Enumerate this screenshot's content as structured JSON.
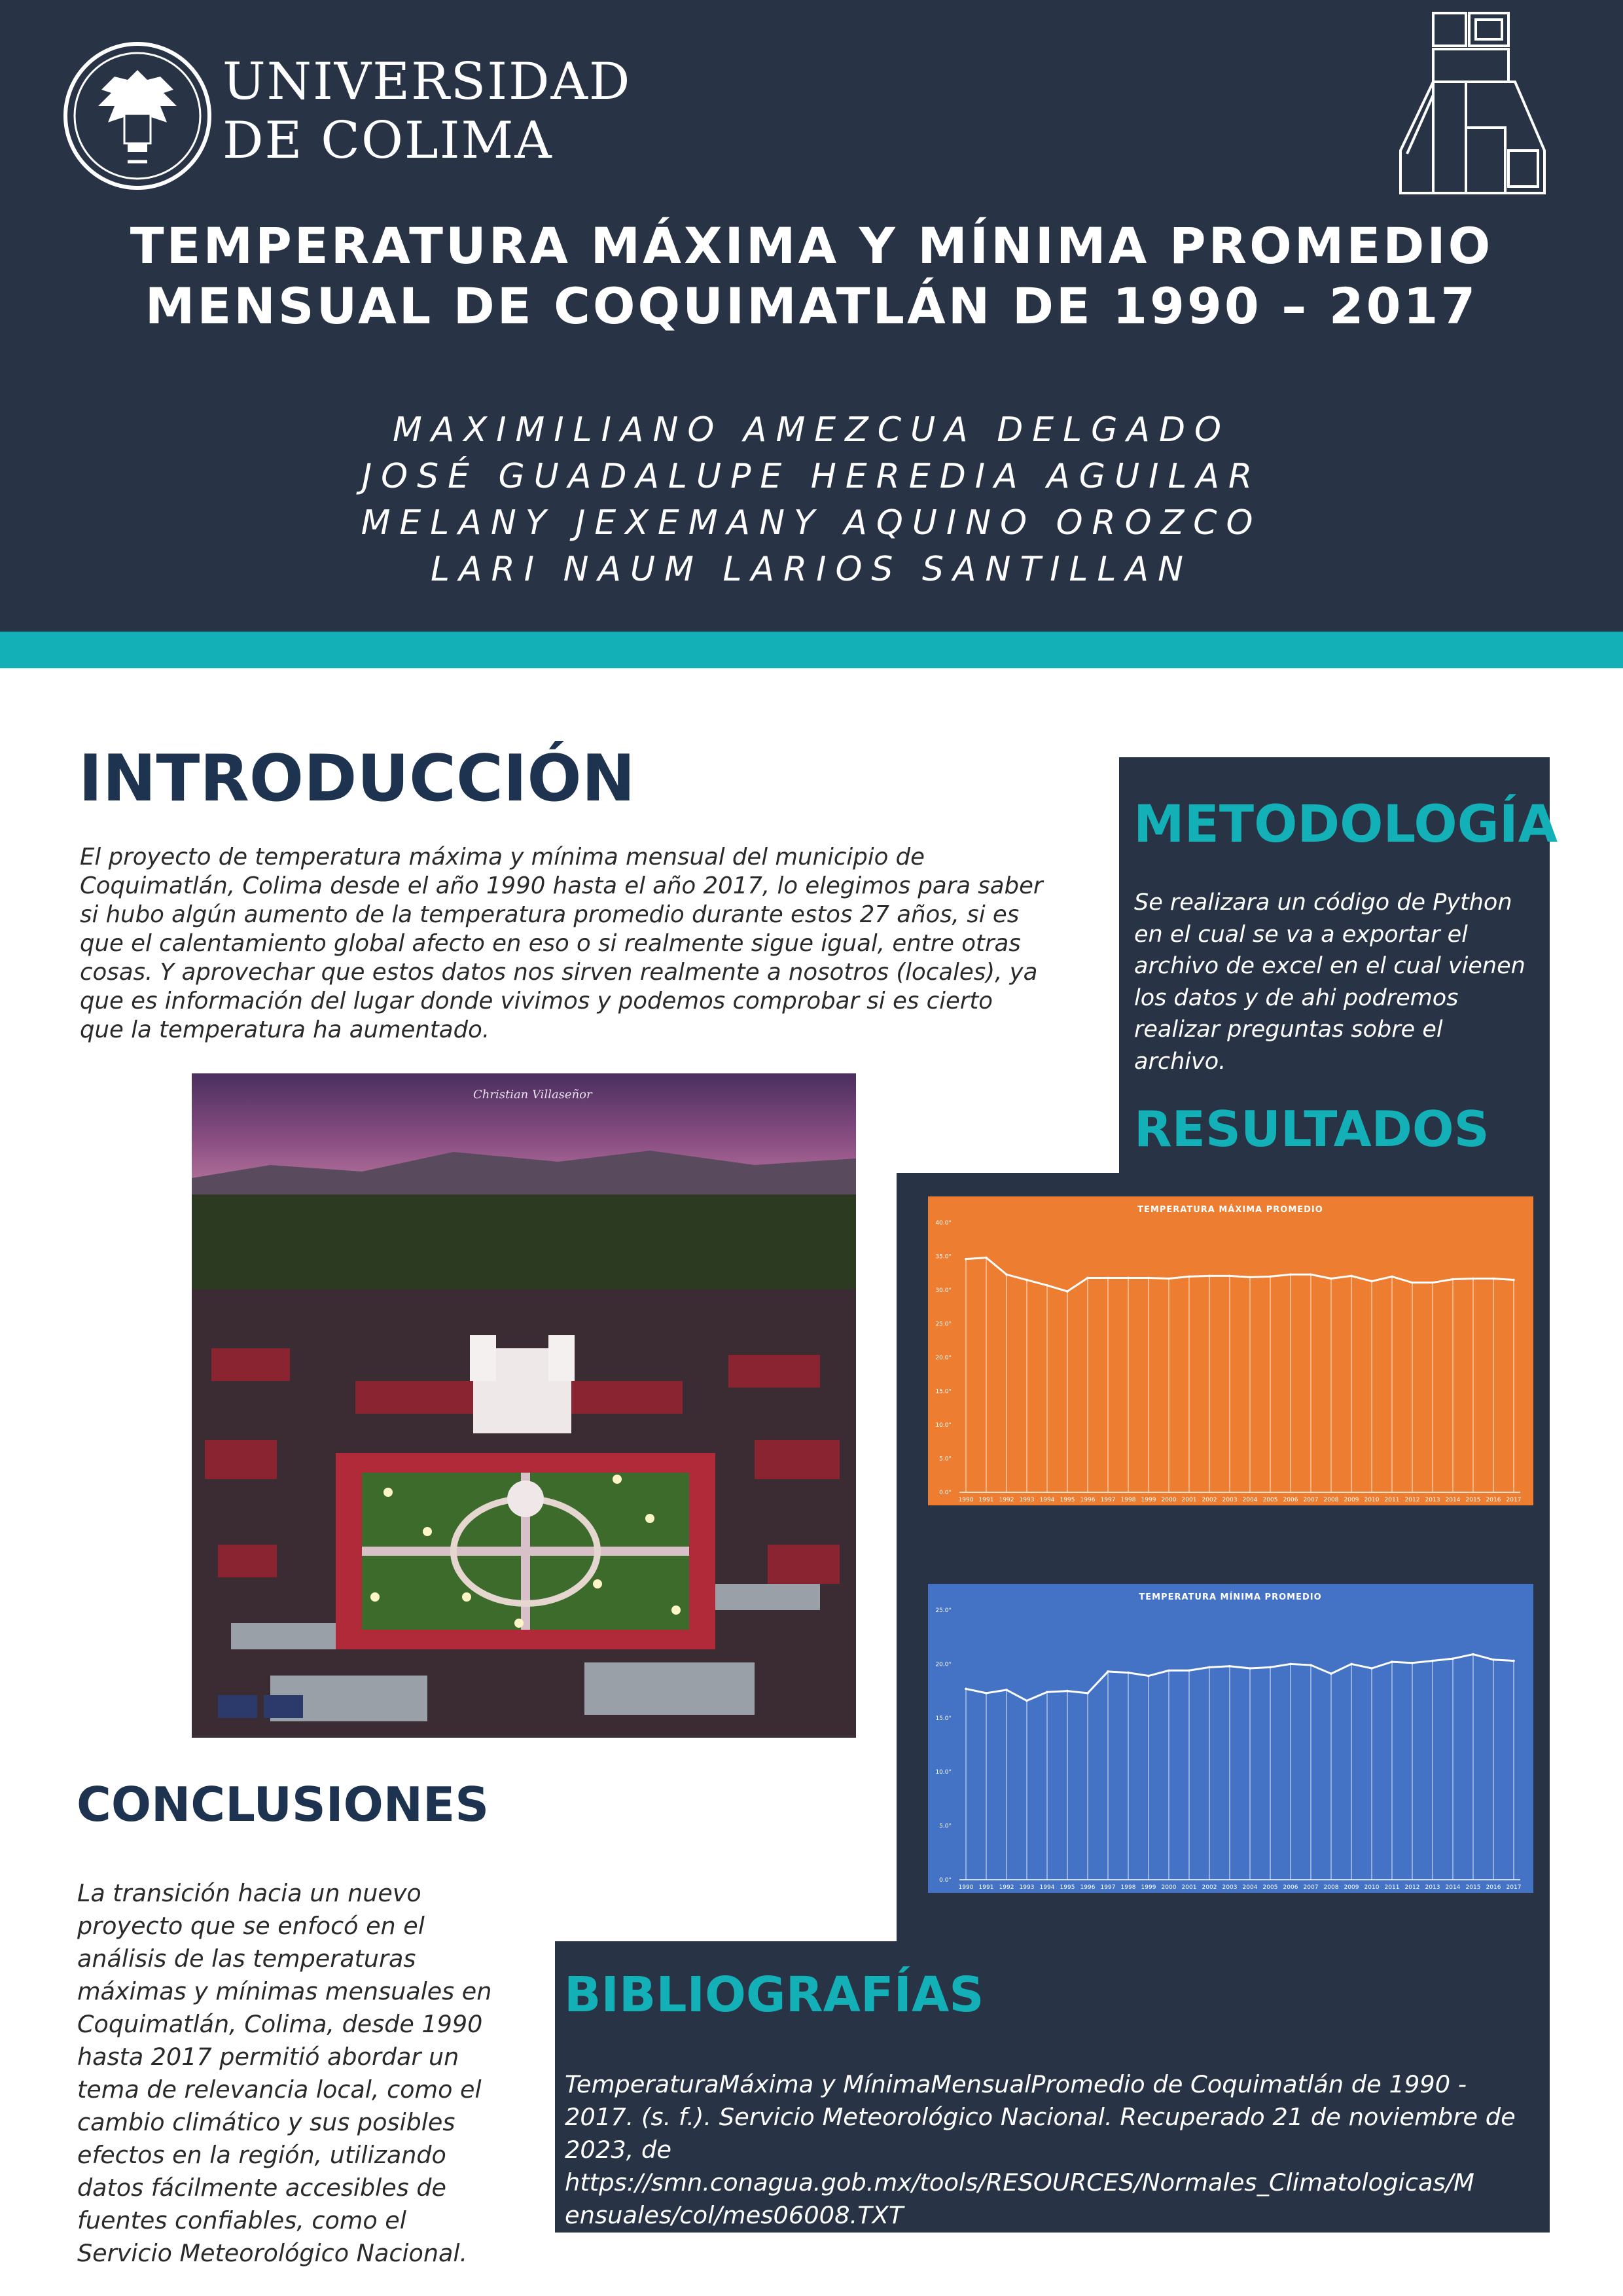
{
  "header": {
    "university_line1": "UNIVERSIDAD",
    "university_line2": "DE COLIMA",
    "title_line1": "TEMPERATURA MÁXIMA Y MÍNIMA PROMEDIO",
    "title_line2": "MENSUAL DE COQUIMATLÁN DE 1990 – 2017",
    "authors": [
      "MAXIMILIANO AMEZCUA DELGADO",
      "JOSÉ GUADALUPE HEREDIA AGUILAR",
      "MELANY JEXEMANY AQUINO OROZCO",
      "LARI NAUM LARIOS SANTILLAN"
    ]
  },
  "colors": {
    "navy": "#283446",
    "teal": "#14b0b8",
    "heading_dark": "#1d3350",
    "chart_orange": "#ed7d31",
    "chart_blue": "#4472c4"
  },
  "introduction": {
    "heading": "INTRODUCCIÓN",
    "lines": [
      "El proyecto de temperatura máxima y mínima mensual del municipio de",
      "Coquimatlán, Colima desde el año 1990 hasta el año 2017, lo elegimos para saber",
      "si hubo algún aumento de la temperatura promedio durante estos 27 años, si es",
      "que el calentamiento global afecto en eso o si realmente sigue igual, entre otras",
      "cosas. Y aprovechar que estos datos nos sirven realmente a nosotros (locales), ya",
      "que es información del lugar donde vivimos y podemos comprobar si es cierto",
      "que la temperatura ha aumentado."
    ]
  },
  "photo": {
    "signature": "Christian Villaseñor"
  },
  "methodology": {
    "heading": "METODOLOGÍA",
    "lines": [
      "Se realizara un código de Python",
      "en el cual se va a exportar el",
      "archivo de excel en el cual vienen",
      "los datos y de ahi podremos",
      "realizar preguntas sobre el",
      "archivo."
    ]
  },
  "results": {
    "heading": "RESULTADOS"
  },
  "conclusions": {
    "heading": "CONCLUSIONES",
    "lines": [
      "La transición hacia un nuevo",
      "proyecto que se enfocó en el",
      "análisis de las temperaturas",
      "máximas y mínimas mensuales en",
      "Coquimatlán, Colima, desde 1990",
      "hasta 2017 permitió abordar un",
      "tema de relevancia local, como el",
      "cambio climático y sus posibles",
      "efectos en la región, utilizando",
      "datos fácilmente accesibles de",
      "fuentes confiables, como el",
      "Servicio Meteorológico Nacional."
    ]
  },
  "bibliography": {
    "heading": "BIBLIOGRAFÍAS",
    "lines": [
      "TemperaturaMáxima y MínimaMensualPromedio de Coquimatlán de 1990 -",
      "2017. (s. f.). Servicio Meteorológico Nacional. Recuperado 21 de noviembre de",
      "2023, de"
    ],
    "link_lines": [
      "https://smn.conagua.gob.mx/tools/RESOURCES/Normales_Climatologicas/M",
      "ensuales/col/mes06008.TXT"
    ]
  },
  "chart_data": [
    {
      "type": "area",
      "title": "TEMPERATURA MÁXIMA PROMEDIO",
      "color": "#ed7d31",
      "categories": [
        "1990",
        "1991",
        "1992",
        "1993",
        "1994",
        "1995",
        "1996",
        "1997",
        "1998",
        "1999",
        "2000",
        "2001",
        "2002",
        "2003",
        "2004",
        "2005",
        "2006",
        "2007",
        "2008",
        "2009",
        "2010",
        "2011",
        "2012",
        "2013",
        "2014",
        "2015",
        "2016",
        "2017"
      ],
      "values": [
        34.6,
        34.8,
        32.3,
        31.5,
        30.7,
        29.8,
        31.8,
        31.8,
        31.8,
        31.8,
        31.7,
        32.0,
        32.1,
        32.1,
        31.9,
        32.0,
        32.3,
        32.3,
        31.7,
        32.1,
        31.3,
        32.0,
        31.1,
        31.1,
        31.6,
        31.7,
        31.7,
        31.5
      ],
      "yticks": [
        "0.0°",
        "5.0°",
        "10.0°",
        "15.0°",
        "20.0°",
        "25.0°",
        "30.0°",
        "35.0°",
        "40.0°"
      ],
      "ylim": [
        0,
        40
      ]
    },
    {
      "type": "area",
      "title": "TEMPERATURA MÍNIMA PROMEDIO",
      "color": "#4472c4",
      "categories": [
        "1990",
        "1991",
        "1992",
        "1993",
        "1994",
        "1995",
        "1996",
        "1997",
        "1998",
        "1999",
        "2000",
        "2001",
        "2002",
        "2003",
        "2004",
        "2005",
        "2006",
        "2007",
        "2008",
        "2009",
        "2010",
        "2011",
        "2012",
        "2013",
        "2014",
        "2015",
        "2016",
        "2017"
      ],
      "values": [
        17.7,
        17.3,
        17.6,
        16.6,
        17.4,
        17.5,
        17.3,
        19.3,
        19.2,
        18.9,
        19.4,
        19.4,
        19.7,
        19.8,
        19.6,
        19.7,
        20.0,
        19.9,
        19.1,
        20.0,
        19.6,
        20.2,
        20.1,
        20.3,
        20.5,
        20.9,
        20.4,
        20.3
      ],
      "yticks": [
        "0.0°",
        "5.0°",
        "10.0°",
        "15.0°",
        "20.0°",
        "25.0°"
      ],
      "ylim": [
        0,
        25
      ]
    }
  ]
}
